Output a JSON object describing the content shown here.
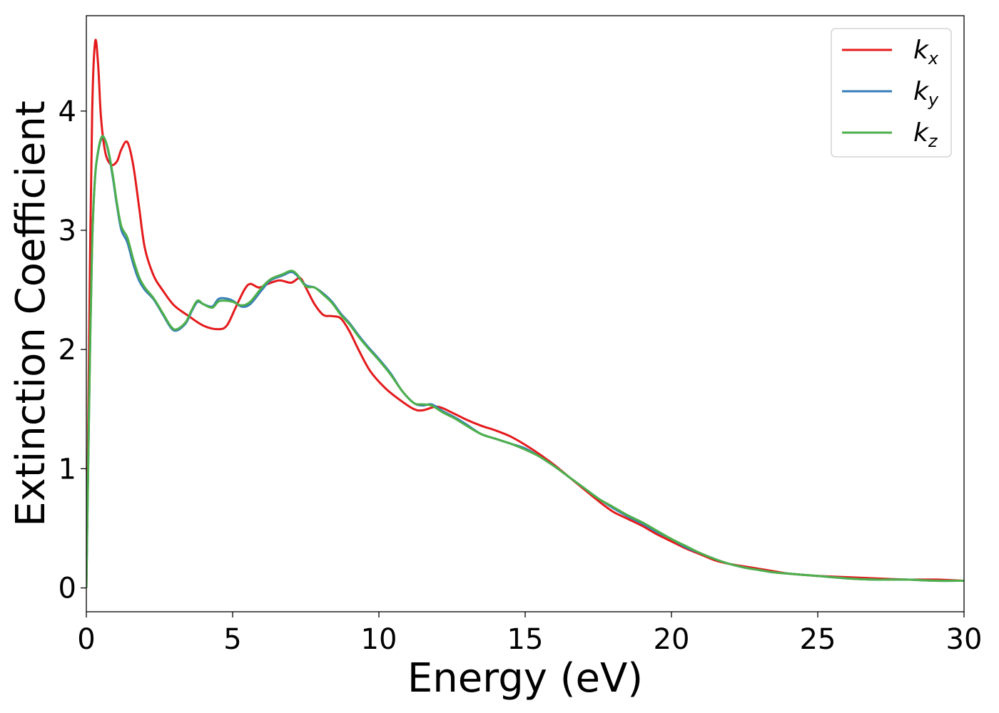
{
  "chart_data": {
    "type": "line",
    "xlabel": "Energy (eV)",
    "ylabel": "Extinction Coefficient",
    "xlim": [
      0,
      30
    ],
    "ylim": [
      -0.2,
      4.8
    ],
    "xticks": [
      0,
      5,
      10,
      15,
      20,
      25,
      30
    ],
    "yticks": [
      0,
      1,
      2,
      3,
      4
    ],
    "grid": false,
    "legend_position": "top-right",
    "series": [
      {
        "name": "k_x",
        "label_main": "k",
        "label_sub": "x",
        "color": "#e41a1c",
        "points": [
          [
            0,
            0
          ],
          [
            0.05,
            1.0
          ],
          [
            0.12,
            2.6
          ],
          [
            0.2,
            4.0
          ],
          [
            0.3,
            4.58
          ],
          [
            0.4,
            4.4
          ],
          [
            0.5,
            3.95
          ],
          [
            0.65,
            3.65
          ],
          [
            0.85,
            3.55
          ],
          [
            1.05,
            3.58
          ],
          [
            1.2,
            3.68
          ],
          [
            1.4,
            3.74
          ],
          [
            1.6,
            3.55
          ],
          [
            1.8,
            3.2
          ],
          [
            2.0,
            2.85
          ],
          [
            2.3,
            2.62
          ],
          [
            2.6,
            2.5
          ],
          [
            3.0,
            2.37
          ],
          [
            3.5,
            2.28
          ],
          [
            4.0,
            2.2
          ],
          [
            4.5,
            2.17
          ],
          [
            4.8,
            2.2
          ],
          [
            5.1,
            2.35
          ],
          [
            5.4,
            2.5
          ],
          [
            5.6,
            2.55
          ],
          [
            5.9,
            2.52
          ],
          [
            6.2,
            2.55
          ],
          [
            6.6,
            2.58
          ],
          [
            7.0,
            2.56
          ],
          [
            7.3,
            2.6
          ],
          [
            7.5,
            2.52
          ],
          [
            7.8,
            2.38
          ],
          [
            8.1,
            2.29
          ],
          [
            8.4,
            2.28
          ],
          [
            8.7,
            2.26
          ],
          [
            9.0,
            2.15
          ],
          [
            9.3,
            2.0
          ],
          [
            9.7,
            1.82
          ],
          [
            10.2,
            1.68
          ],
          [
            10.7,
            1.58
          ],
          [
            11.2,
            1.5
          ],
          [
            11.5,
            1.49
          ],
          [
            12.0,
            1.52
          ],
          [
            12.5,
            1.47
          ],
          [
            13.0,
            1.41
          ],
          [
            13.5,
            1.36
          ],
          [
            14.0,
            1.32
          ],
          [
            14.5,
            1.27
          ],
          [
            15.0,
            1.2
          ],
          [
            15.5,
            1.12
          ],
          [
            16.0,
            1.03
          ],
          [
            16.5,
            0.93
          ],
          [
            17.0,
            0.83
          ],
          [
            17.5,
            0.73
          ],
          [
            18.0,
            0.64
          ],
          [
            18.5,
            0.58
          ],
          [
            19.0,
            0.52
          ],
          [
            19.5,
            0.45
          ],
          [
            20.0,
            0.39
          ],
          [
            20.5,
            0.33
          ],
          [
            21.0,
            0.28
          ],
          [
            21.5,
            0.23
          ],
          [
            22.0,
            0.2
          ],
          [
            22.5,
            0.18
          ],
          [
            23.0,
            0.16
          ],
          [
            23.5,
            0.14
          ],
          [
            24.0,
            0.12
          ],
          [
            24.5,
            0.11
          ],
          [
            25.0,
            0.1
          ],
          [
            26.0,
            0.09
          ],
          [
            27.0,
            0.08
          ],
          [
            28.0,
            0.07
          ],
          [
            29.0,
            0.07
          ],
          [
            30.0,
            0.06
          ]
        ]
      },
      {
        "name": "k_y",
        "label_main": "k",
        "label_sub": "y",
        "color": "#377eb8",
        "points": [
          [
            0,
            0
          ],
          [
            0.05,
            0.8
          ],
          [
            0.12,
            1.9
          ],
          [
            0.2,
            2.9
          ],
          [
            0.3,
            3.45
          ],
          [
            0.4,
            3.65
          ],
          [
            0.5,
            3.76
          ],
          [
            0.6,
            3.78
          ],
          [
            0.75,
            3.66
          ],
          [
            0.9,
            3.45
          ],
          [
            1.05,
            3.2
          ],
          [
            1.2,
            3.0
          ],
          [
            1.4,
            2.9
          ],
          [
            1.6,
            2.72
          ],
          [
            1.8,
            2.58
          ],
          [
            2.0,
            2.5
          ],
          [
            2.3,
            2.42
          ],
          [
            2.6,
            2.3
          ],
          [
            2.9,
            2.18
          ],
          [
            3.1,
            2.16
          ],
          [
            3.4,
            2.22
          ],
          [
            3.6,
            2.32
          ],
          [
            3.8,
            2.4
          ],
          [
            4.0,
            2.38
          ],
          [
            4.3,
            2.36
          ],
          [
            4.5,
            2.42
          ],
          [
            4.7,
            2.43
          ],
          [
            5.0,
            2.41
          ],
          [
            5.3,
            2.36
          ],
          [
            5.6,
            2.38
          ],
          [
            6.0,
            2.5
          ],
          [
            6.3,
            2.58
          ],
          [
            6.7,
            2.62
          ],
          [
            7.0,
            2.65
          ],
          [
            7.2,
            2.62
          ],
          [
            7.5,
            2.54
          ],
          [
            7.8,
            2.52
          ],
          [
            8.1,
            2.47
          ],
          [
            8.4,
            2.4
          ],
          [
            8.7,
            2.3
          ],
          [
            9.0,
            2.22
          ],
          [
            9.3,
            2.12
          ],
          [
            9.6,
            2.03
          ],
          [
            10.0,
            1.92
          ],
          [
            10.4,
            1.8
          ],
          [
            10.8,
            1.65
          ],
          [
            11.2,
            1.55
          ],
          [
            11.5,
            1.53
          ],
          [
            11.8,
            1.54
          ],
          [
            12.2,
            1.48
          ],
          [
            12.6,
            1.43
          ],
          [
            13.0,
            1.37
          ],
          [
            13.5,
            1.29
          ],
          [
            14.0,
            1.25
          ],
          [
            14.5,
            1.21
          ],
          [
            15.0,
            1.17
          ],
          [
            15.5,
            1.1
          ],
          [
            16.0,
            1.02
          ],
          [
            16.5,
            0.93
          ],
          [
            17.0,
            0.84
          ],
          [
            17.5,
            0.75
          ],
          [
            18.0,
            0.67
          ],
          [
            18.5,
            0.6
          ],
          [
            19.0,
            0.54
          ],
          [
            19.5,
            0.47
          ],
          [
            20.0,
            0.41
          ],
          [
            20.5,
            0.34
          ],
          [
            21.0,
            0.29
          ],
          [
            21.5,
            0.24
          ],
          [
            22.0,
            0.2
          ],
          [
            22.5,
            0.17
          ],
          [
            23.0,
            0.15
          ],
          [
            23.5,
            0.13
          ],
          [
            24.0,
            0.12
          ],
          [
            24.5,
            0.11
          ],
          [
            25.0,
            0.1
          ],
          [
            26.0,
            0.08
          ],
          [
            27.0,
            0.07
          ],
          [
            28.0,
            0.07
          ],
          [
            29.0,
            0.06
          ],
          [
            30.0,
            0.06
          ]
        ]
      },
      {
        "name": "k_z",
        "label_main": "k",
        "label_sub": "z",
        "color": "#4daf4a",
        "points": [
          [
            0,
            0
          ],
          [
            0.05,
            0.8
          ],
          [
            0.12,
            1.9
          ],
          [
            0.2,
            2.9
          ],
          [
            0.3,
            3.45
          ],
          [
            0.4,
            3.66
          ],
          [
            0.5,
            3.77
          ],
          [
            0.6,
            3.78
          ],
          [
            0.75,
            3.67
          ],
          [
            0.9,
            3.47
          ],
          [
            1.05,
            3.22
          ],
          [
            1.2,
            3.03
          ],
          [
            1.4,
            2.94
          ],
          [
            1.6,
            2.76
          ],
          [
            1.8,
            2.61
          ],
          [
            2.0,
            2.52
          ],
          [
            2.3,
            2.43
          ],
          [
            2.6,
            2.31
          ],
          [
            2.9,
            2.19
          ],
          [
            3.1,
            2.17
          ],
          [
            3.4,
            2.23
          ],
          [
            3.6,
            2.33
          ],
          [
            3.8,
            2.41
          ],
          [
            4.0,
            2.38
          ],
          [
            4.3,
            2.35
          ],
          [
            4.5,
            2.4
          ],
          [
            4.7,
            2.41
          ],
          [
            5.0,
            2.4
          ],
          [
            5.3,
            2.37
          ],
          [
            5.6,
            2.4
          ],
          [
            6.0,
            2.52
          ],
          [
            6.3,
            2.59
          ],
          [
            6.7,
            2.63
          ],
          [
            7.0,
            2.66
          ],
          [
            7.2,
            2.63
          ],
          [
            7.5,
            2.53
          ],
          [
            7.8,
            2.52
          ],
          [
            8.1,
            2.46
          ],
          [
            8.4,
            2.39
          ],
          [
            8.7,
            2.29
          ],
          [
            9.0,
            2.21
          ],
          [
            9.3,
            2.11
          ],
          [
            9.6,
            2.02
          ],
          [
            10.0,
            1.91
          ],
          [
            10.4,
            1.79
          ],
          [
            10.8,
            1.65
          ],
          [
            11.2,
            1.55
          ],
          [
            11.5,
            1.54
          ],
          [
            11.8,
            1.53
          ],
          [
            12.2,
            1.47
          ],
          [
            12.6,
            1.42
          ],
          [
            13.0,
            1.36
          ],
          [
            13.5,
            1.29
          ],
          [
            14.0,
            1.25
          ],
          [
            14.5,
            1.21
          ],
          [
            15.0,
            1.16
          ],
          [
            15.5,
            1.1
          ],
          [
            16.0,
            1.02
          ],
          [
            16.5,
            0.93
          ],
          [
            17.0,
            0.84
          ],
          [
            17.5,
            0.75
          ],
          [
            18.0,
            0.68
          ],
          [
            18.5,
            0.61
          ],
          [
            19.0,
            0.55
          ],
          [
            19.5,
            0.48
          ],
          [
            20.0,
            0.41
          ],
          [
            20.5,
            0.35
          ],
          [
            21.0,
            0.29
          ],
          [
            21.5,
            0.24
          ],
          [
            22.0,
            0.2
          ],
          [
            22.5,
            0.17
          ],
          [
            23.0,
            0.15
          ],
          [
            23.5,
            0.13
          ],
          [
            24.0,
            0.12
          ],
          [
            24.5,
            0.11
          ],
          [
            25.0,
            0.1
          ],
          [
            26.0,
            0.08
          ],
          [
            27.0,
            0.07
          ],
          [
            28.0,
            0.07
          ],
          [
            29.0,
            0.06
          ],
          [
            30.0,
            0.06
          ]
        ]
      }
    ]
  }
}
